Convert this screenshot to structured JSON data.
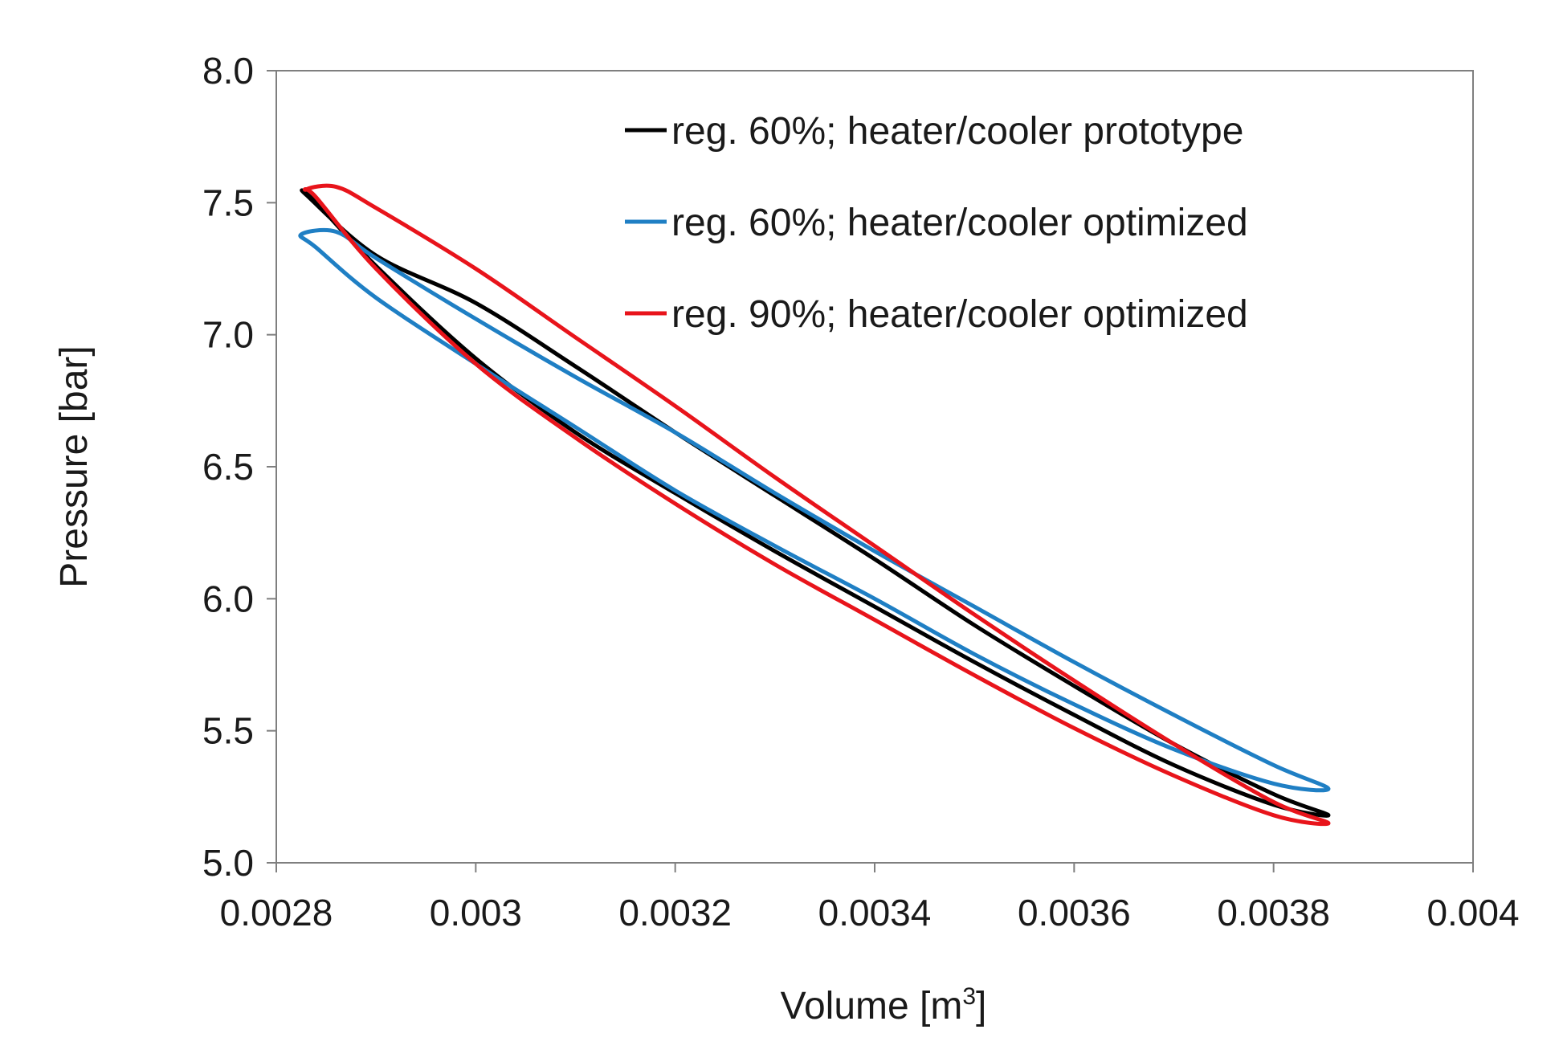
{
  "chart_data": {
    "type": "line",
    "title": "",
    "xlabel": "Volume [m",
    "xlabel_superscript": "3",
    "xlabel_suffix": "]",
    "ylabel": "Pressure [bar]",
    "xlim": [
      0.0028,
      0.004
    ],
    "ylim": [
      5.0,
      8.0
    ],
    "xticks": [
      0.0028,
      0.003,
      0.0032,
      0.0034,
      0.0036,
      0.0038,
      0.004
    ],
    "xtick_labels": [
      "0.0028",
      "0.003",
      "0.0032",
      "0.0034",
      "0.0036",
      "0.0038",
      "0.004"
    ],
    "yticks": [
      5.0,
      5.5,
      6.0,
      6.5,
      7.0,
      7.5,
      8.0
    ],
    "ytick_labels": [
      "5.0",
      "5.5",
      "6.0",
      "6.5",
      "7.0",
      "7.5",
      "8.0"
    ],
    "grid": false,
    "legend_position": "top-right",
    "series": [
      {
        "name": "reg. 60%; heater/cooler prototype",
        "color": "#000000",
        "closed": true,
        "points": [
          [
            0.00283,
            7.53
          ],
          [
            0.0029,
            7.3
          ],
          [
            0.003,
            7.12
          ],
          [
            0.0031,
            6.88
          ],
          [
            0.0032,
            6.63
          ],
          [
            0.0033,
            6.39
          ],
          [
            0.0034,
            6.15
          ],
          [
            0.0035,
            5.9
          ],
          [
            0.0036,
            5.67
          ],
          [
            0.0037,
            5.45
          ],
          [
            0.0038,
            5.26
          ],
          [
            0.003855,
            5.18
          ],
          [
            0.0038,
            5.22
          ],
          [
            0.0037,
            5.37
          ],
          [
            0.0036,
            5.56
          ],
          [
            0.0035,
            5.76
          ],
          [
            0.0034,
            5.97
          ],
          [
            0.0033,
            6.18
          ],
          [
            0.0032,
            6.4
          ],
          [
            0.0031,
            6.63
          ],
          [
            0.003,
            6.91
          ],
          [
            0.0029,
            7.26
          ],
          [
            0.00284,
            7.5
          ]
        ]
      },
      {
        "name": "reg. 60%; heater/cooler optimized",
        "color": "#1f7fc4",
        "closed": true,
        "points": [
          [
            0.002825,
            7.38
          ],
          [
            0.00286,
            7.39
          ],
          [
            0.0029,
            7.29
          ],
          [
            0.003,
            7.06
          ],
          [
            0.0031,
            6.84
          ],
          [
            0.0032,
            6.63
          ],
          [
            0.0033,
            6.4
          ],
          [
            0.0034,
            6.18
          ],
          [
            0.0035,
            5.97
          ],
          [
            0.0036,
            5.76
          ],
          [
            0.0037,
            5.56
          ],
          [
            0.0038,
            5.37
          ],
          [
            0.003855,
            5.28
          ],
          [
            0.0038,
            5.3
          ],
          [
            0.0037,
            5.43
          ],
          [
            0.0036,
            5.6
          ],
          [
            0.0035,
            5.79
          ],
          [
            0.0034,
            6.0
          ],
          [
            0.0033,
            6.2
          ],
          [
            0.0032,
            6.41
          ],
          [
            0.0031,
            6.65
          ],
          [
            0.003,
            6.89
          ],
          [
            0.0029,
            7.14
          ],
          [
            0.00284,
            7.33
          ]
        ]
      },
      {
        "name": "reg. 90%; heater/cooler optimized",
        "color": "#e8141b",
        "closed": true,
        "points": [
          [
            0.00283,
            7.55
          ],
          [
            0.00286,
            7.56
          ],
          [
            0.0029,
            7.48
          ],
          [
            0.003,
            7.25
          ],
          [
            0.0031,
            6.99
          ],
          [
            0.0032,
            6.73
          ],
          [
            0.0033,
            6.46
          ],
          [
            0.0034,
            6.2
          ],
          [
            0.0035,
            5.94
          ],
          [
            0.0036,
            5.69
          ],
          [
            0.0037,
            5.45
          ],
          [
            0.0038,
            5.23
          ],
          [
            0.003855,
            5.15
          ],
          [
            0.0038,
            5.18
          ],
          [
            0.0037,
            5.33
          ],
          [
            0.0036,
            5.51
          ],
          [
            0.0035,
            5.71
          ],
          [
            0.0034,
            5.92
          ],
          [
            0.0033,
            6.13
          ],
          [
            0.0032,
            6.36
          ],
          [
            0.0031,
            6.61
          ],
          [
            0.003,
            6.89
          ],
          [
            0.0029,
            7.25
          ],
          [
            0.00284,
            7.52
          ]
        ]
      }
    ]
  }
}
